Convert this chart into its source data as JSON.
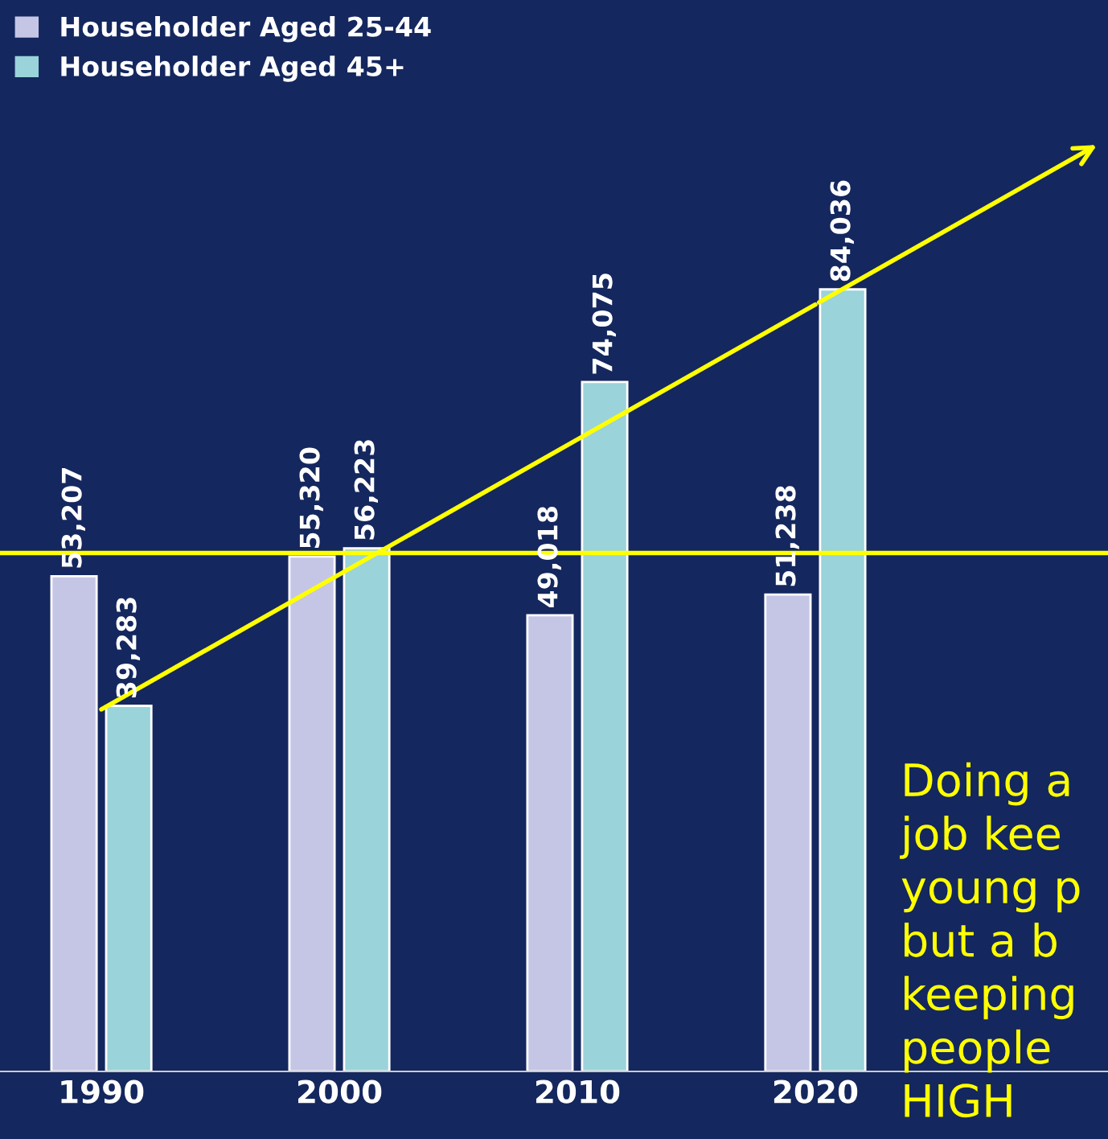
{
  "chart_data": {
    "type": "bar",
    "categories": [
      "1990",
      "2000",
      "2010",
      "2020"
    ],
    "series": [
      {
        "name": "Householder Aged 25-44",
        "color": "#c5c6e6",
        "values": [
          53207,
          55320,
          49018,
          51238
        ],
        "value_labels": [
          "53,207",
          "55,320",
          "49,018",
          "51,238"
        ]
      },
      {
        "name": "Householder Aged 45+",
        "color": "#9ad3da",
        "values": [
          39283,
          56223,
          74075,
          84036
        ],
        "value_labels": [
          "39,283",
          "56,223",
          "74,075",
          "84,036"
        ]
      },
      {
        "type": "line",
        "color": "#ffff00",
        "values": [
          38900,
          53400,
          67900,
          82400
        ]
      }
    ],
    "legend": "top left",
    "grid": false,
    "ref_lines": [
      {
        "axis": "y",
        "value": 55700,
        "color": "#ffff00"
      }
    ],
    "annotations": [
      "Doing a\njob kee\nyoung p\nbut a b\nkeeping\npeople\nHIGH"
    ]
  }
}
